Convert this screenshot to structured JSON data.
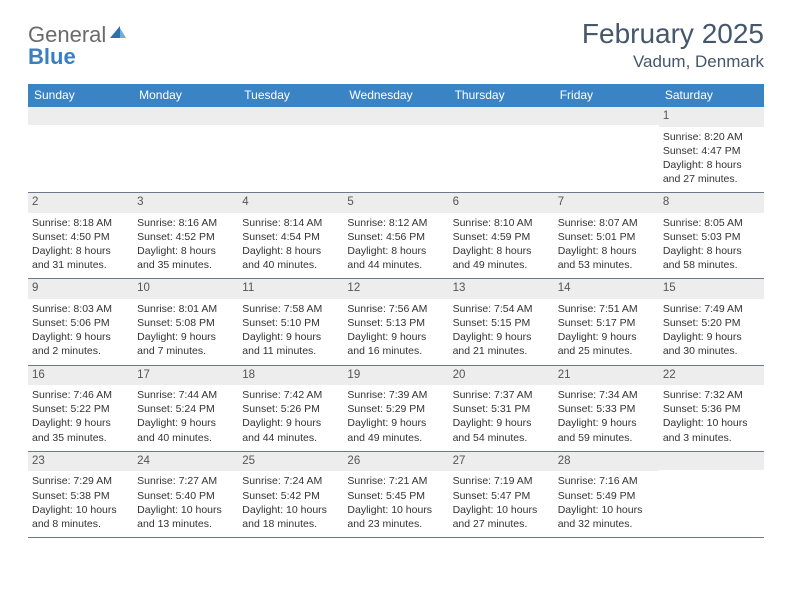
{
  "logo": {
    "text1": "General",
    "text2": "Blue"
  },
  "title": "February 2025",
  "location": "Vadum, Denmark",
  "colors": {
    "header_bg": "#3a84c6",
    "header_text": "#ffffff",
    "title_text": "#44576b",
    "band_bg": "#ededed",
    "row_border": "#6a7a8a",
    "body_text": "#333333",
    "logo_gray": "#6b6b6b",
    "logo_blue": "#3a7fc4"
  },
  "weekdays": [
    "Sunday",
    "Monday",
    "Tuesday",
    "Wednesday",
    "Thursday",
    "Friday",
    "Saturday"
  ],
  "weeks": [
    [
      null,
      null,
      null,
      null,
      null,
      null,
      {
        "n": "1",
        "sunrise": "8:20 AM",
        "sunset": "4:47 PM",
        "d1": "Daylight: 8 hours",
        "d2": "and 27 minutes."
      }
    ],
    [
      {
        "n": "2",
        "sunrise": "8:18 AM",
        "sunset": "4:50 PM",
        "d1": "Daylight: 8 hours",
        "d2": "and 31 minutes."
      },
      {
        "n": "3",
        "sunrise": "8:16 AM",
        "sunset": "4:52 PM",
        "d1": "Daylight: 8 hours",
        "d2": "and 35 minutes."
      },
      {
        "n": "4",
        "sunrise": "8:14 AM",
        "sunset": "4:54 PM",
        "d1": "Daylight: 8 hours",
        "d2": "and 40 minutes."
      },
      {
        "n": "5",
        "sunrise": "8:12 AM",
        "sunset": "4:56 PM",
        "d1": "Daylight: 8 hours",
        "d2": "and 44 minutes."
      },
      {
        "n": "6",
        "sunrise": "8:10 AM",
        "sunset": "4:59 PM",
        "d1": "Daylight: 8 hours",
        "d2": "and 49 minutes."
      },
      {
        "n": "7",
        "sunrise": "8:07 AM",
        "sunset": "5:01 PM",
        "d1": "Daylight: 8 hours",
        "d2": "and 53 minutes."
      },
      {
        "n": "8",
        "sunrise": "8:05 AM",
        "sunset": "5:03 PM",
        "d1": "Daylight: 8 hours",
        "d2": "and 58 minutes."
      }
    ],
    [
      {
        "n": "9",
        "sunrise": "8:03 AM",
        "sunset": "5:06 PM",
        "d1": "Daylight: 9 hours",
        "d2": "and 2 minutes."
      },
      {
        "n": "10",
        "sunrise": "8:01 AM",
        "sunset": "5:08 PM",
        "d1": "Daylight: 9 hours",
        "d2": "and 7 minutes."
      },
      {
        "n": "11",
        "sunrise": "7:58 AM",
        "sunset": "5:10 PM",
        "d1": "Daylight: 9 hours",
        "d2": "and 11 minutes."
      },
      {
        "n": "12",
        "sunrise": "7:56 AM",
        "sunset": "5:13 PM",
        "d1": "Daylight: 9 hours",
        "d2": "and 16 minutes."
      },
      {
        "n": "13",
        "sunrise": "7:54 AM",
        "sunset": "5:15 PM",
        "d1": "Daylight: 9 hours",
        "d2": "and 21 minutes."
      },
      {
        "n": "14",
        "sunrise": "7:51 AM",
        "sunset": "5:17 PM",
        "d1": "Daylight: 9 hours",
        "d2": "and 25 minutes."
      },
      {
        "n": "15",
        "sunrise": "7:49 AM",
        "sunset": "5:20 PM",
        "d1": "Daylight: 9 hours",
        "d2": "and 30 minutes."
      }
    ],
    [
      {
        "n": "16",
        "sunrise": "7:46 AM",
        "sunset": "5:22 PM",
        "d1": "Daylight: 9 hours",
        "d2": "and 35 minutes."
      },
      {
        "n": "17",
        "sunrise": "7:44 AM",
        "sunset": "5:24 PM",
        "d1": "Daylight: 9 hours",
        "d2": "and 40 minutes."
      },
      {
        "n": "18",
        "sunrise": "7:42 AM",
        "sunset": "5:26 PM",
        "d1": "Daylight: 9 hours",
        "d2": "and 44 minutes."
      },
      {
        "n": "19",
        "sunrise": "7:39 AM",
        "sunset": "5:29 PM",
        "d1": "Daylight: 9 hours",
        "d2": "and 49 minutes."
      },
      {
        "n": "20",
        "sunrise": "7:37 AM",
        "sunset": "5:31 PM",
        "d1": "Daylight: 9 hours",
        "d2": "and 54 minutes."
      },
      {
        "n": "21",
        "sunrise": "7:34 AM",
        "sunset": "5:33 PM",
        "d1": "Daylight: 9 hours",
        "d2": "and 59 minutes."
      },
      {
        "n": "22",
        "sunrise": "7:32 AM",
        "sunset": "5:36 PM",
        "d1": "Daylight: 10 hours",
        "d2": "and 3 minutes."
      }
    ],
    [
      {
        "n": "23",
        "sunrise": "7:29 AM",
        "sunset": "5:38 PM",
        "d1": "Daylight: 10 hours",
        "d2": "and 8 minutes."
      },
      {
        "n": "24",
        "sunrise": "7:27 AM",
        "sunset": "5:40 PM",
        "d1": "Daylight: 10 hours",
        "d2": "and 13 minutes."
      },
      {
        "n": "25",
        "sunrise": "7:24 AM",
        "sunset": "5:42 PM",
        "d1": "Daylight: 10 hours",
        "d2": "and 18 minutes."
      },
      {
        "n": "26",
        "sunrise": "7:21 AM",
        "sunset": "5:45 PM",
        "d1": "Daylight: 10 hours",
        "d2": "and 23 minutes."
      },
      {
        "n": "27",
        "sunrise": "7:19 AM",
        "sunset": "5:47 PM",
        "d1": "Daylight: 10 hours",
        "d2": "and 27 minutes."
      },
      {
        "n": "28",
        "sunrise": "7:16 AM",
        "sunset": "5:49 PM",
        "d1": "Daylight: 10 hours",
        "d2": "and 32 minutes."
      },
      null
    ]
  ],
  "labels": {
    "sunrise_prefix": "Sunrise: ",
    "sunset_prefix": "Sunset: "
  }
}
